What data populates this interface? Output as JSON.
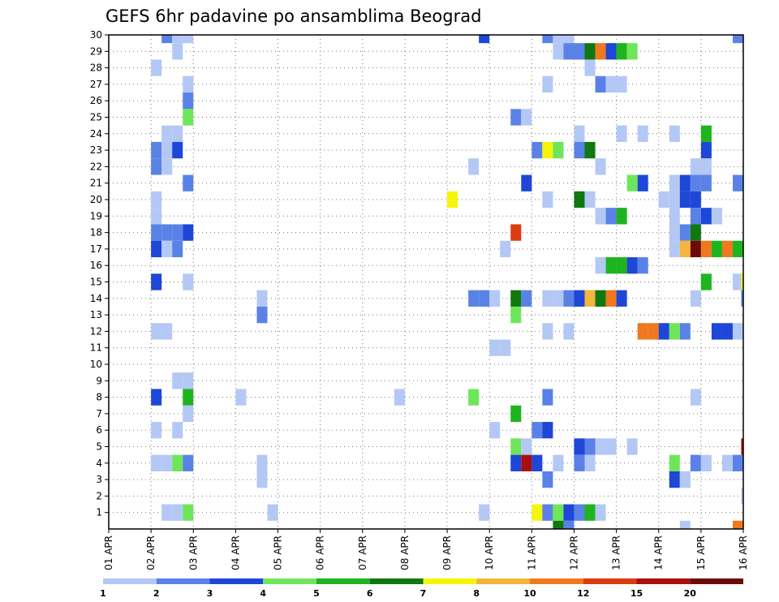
{
  "chart_data": {
    "type": "heatmap",
    "title": "GEFS 6hr padavine po ansamblima Beograd",
    "xlabel": "",
    "ylabel": "",
    "x_tick_labels": [
      "01 APR",
      "02 APR",
      "03 APR",
      "04 APR",
      "05 APR",
      "06 APR",
      "07 APR",
      "08 APR",
      "09 APR",
      "10 APR",
      "11 APR",
      "12 APR",
      "13 APR",
      "14 APR",
      "15 APR",
      "16 APR"
    ],
    "y_tick_labels": [
      "1",
      "2",
      "3",
      "4",
      "5",
      "6",
      "7",
      "8",
      "9",
      "10",
      "11",
      "12",
      "13",
      "14",
      "15",
      "16",
      "17",
      "18",
      "19",
      "20",
      "21",
      "22",
      "23",
      "24",
      "25",
      "26",
      "27",
      "28",
      "29",
      "30"
    ],
    "xlim_days": [
      1,
      16
    ],
    "time_step_days": 0.25,
    "ylim_member": [
      0,
      30
    ],
    "grid": "dotted",
    "legend": {
      "placement": "bottom",
      "thresholds": [
        1,
        2,
        3,
        4,
        5,
        6,
        7,
        8,
        10,
        12,
        15,
        20
      ],
      "colors": [
        "#b4c8f5",
        "#5a82e6",
        "#1e46d7",
        "#6ee65a",
        "#1eb41e",
        "#0f780f",
        "#f5f50a",
        "#f5b43c",
        "#f0781e",
        "#dc3c0f",
        "#aa0f0f",
        "#6e0a0a"
      ]
    },
    "cells_note": "each cell: [member, day (start of 6h interval, 1 = 01 APR 00z), precipitation class index 0-11]",
    "cells": [
      [
        30,
        2.25,
        1
      ],
      [
        30,
        2.5,
        0
      ],
      [
        30,
        2.75,
        0
      ],
      [
        30,
        9.75,
        2
      ],
      [
        30,
        11.25,
        1
      ],
      [
        30,
        11.5,
        0
      ],
      [
        30,
        11.75,
        0
      ],
      [
        30,
        15.75,
        1
      ],
      [
        29,
        2.5,
        0
      ],
      [
        29,
        11.5,
        0
      ],
      [
        29,
        11.75,
        1
      ],
      [
        29,
        12,
        1
      ],
      [
        29,
        12.25,
        5
      ],
      [
        29,
        12.5,
        8
      ],
      [
        29,
        12.75,
        2
      ],
      [
        29,
        13,
        4
      ],
      [
        29,
        13.25,
        3
      ],
      [
        28,
        2,
        0
      ],
      [
        28,
        12.25,
        0
      ],
      [
        27,
        2.75,
        0
      ],
      [
        27,
        11.25,
        0
      ],
      [
        27,
        12.5,
        1
      ],
      [
        27,
        12.75,
        0
      ],
      [
        27,
        13,
        0
      ],
      [
        26,
        2.75,
        1
      ],
      [
        25,
        2.75,
        3
      ],
      [
        25,
        10.5,
        1
      ],
      [
        25,
        10.75,
        0
      ],
      [
        24,
        2.25,
        0
      ],
      [
        24,
        2.5,
        0
      ],
      [
        24,
        12,
        0
      ],
      [
        24,
        13,
        0
      ],
      [
        24,
        13.5,
        0
      ],
      [
        24,
        14.25,
        0
      ],
      [
        24,
        15,
        4
      ],
      [
        23,
        2,
        1
      ],
      [
        23,
        2.25,
        0
      ],
      [
        23,
        2.5,
        2
      ],
      [
        23,
        11,
        1
      ],
      [
        23,
        11.25,
        6
      ],
      [
        23,
        11.5,
        3
      ],
      [
        23,
        12,
        1
      ],
      [
        23,
        12.25,
        5
      ],
      [
        23,
        15,
        2
      ],
      [
        22,
        2,
        1
      ],
      [
        22,
        2.25,
        0
      ],
      [
        22,
        9.5,
        0
      ],
      [
        22,
        12.5,
        0
      ],
      [
        22,
        14.75,
        0
      ],
      [
        22,
        15,
        0
      ],
      [
        21,
        2.75,
        1
      ],
      [
        21,
        10.75,
        2
      ],
      [
        21,
        13.25,
        3
      ],
      [
        21,
        13.5,
        2
      ],
      [
        21,
        14.25,
        0
      ],
      [
        21,
        14.5,
        2
      ],
      [
        21,
        14.75,
        1
      ],
      [
        21,
        15,
        1
      ],
      [
        21,
        15.75,
        1
      ],
      [
        20,
        2,
        0
      ],
      [
        20,
        9,
        6
      ],
      [
        20,
        11.25,
        0
      ],
      [
        20,
        12,
        5
      ],
      [
        20,
        12.25,
        0
      ],
      [
        20,
        14,
        0
      ],
      [
        20,
        14.25,
        0
      ],
      [
        20,
        14.5,
        2
      ],
      [
        20,
        14.75,
        2
      ],
      [
        19,
        2,
        0
      ],
      [
        19,
        12.5,
        0
      ],
      [
        19,
        12.75,
        1
      ],
      [
        19,
        13,
        4
      ],
      [
        19,
        14.25,
        0
      ],
      [
        19,
        14.75,
        1
      ],
      [
        19,
        15,
        2
      ],
      [
        19,
        15.25,
        0
      ],
      [
        18,
        2,
        1
      ],
      [
        18,
        2.25,
        1
      ],
      [
        18,
        2.5,
        1
      ],
      [
        18,
        2.75,
        2
      ],
      [
        18,
        10.5,
        9
      ],
      [
        18,
        14.25,
        0
      ],
      [
        18,
        14.5,
        1
      ],
      [
        18,
        14.75,
        5
      ],
      [
        17,
        2,
        2
      ],
      [
        17,
        2.25,
        0
      ],
      [
        17,
        2.5,
        1
      ],
      [
        17,
        10.25,
        0
      ],
      [
        17,
        14.25,
        0
      ],
      [
        17,
        14.5,
        7
      ],
      [
        17,
        14.75,
        11
      ],
      [
        17,
        15,
        8
      ],
      [
        17,
        15.25,
        4
      ],
      [
        17,
        15.5,
        8
      ],
      [
        17,
        15.75,
        4
      ],
      [
        16,
        12.5,
        0
      ],
      [
        16,
        12.75,
        4
      ],
      [
        16,
        13,
        4
      ],
      [
        16,
        13.25,
        2
      ],
      [
        16,
        13.5,
        1
      ],
      [
        15,
        2,
        2
      ],
      [
        15,
        2.75,
        0
      ],
      [
        15,
        15,
        4
      ],
      [
        15,
        15.75,
        0
      ],
      [
        15,
        15.95,
        6
      ],
      [
        14,
        4.5,
        0
      ],
      [
        14,
        9.5,
        1
      ],
      [
        14,
        9.75,
        1
      ],
      [
        14,
        10,
        0
      ],
      [
        14,
        10.5,
        5
      ],
      [
        14,
        10.75,
        1
      ],
      [
        14,
        11.25,
        0
      ],
      [
        14,
        11.5,
        0
      ],
      [
        14,
        11.75,
        1
      ],
      [
        14,
        12,
        2
      ],
      [
        14,
        12.25,
        7
      ],
      [
        14,
        12.5,
        5
      ],
      [
        14,
        12.75,
        8
      ],
      [
        14,
        13,
        2
      ],
      [
        14,
        14.75,
        0
      ],
      [
        14,
        15.95,
        1
      ],
      [
        13,
        4.5,
        1
      ],
      [
        13,
        10.5,
        3
      ],
      [
        12,
        2,
        0
      ],
      [
        12,
        2.25,
        0
      ],
      [
        12,
        11.25,
        0
      ],
      [
        12,
        11.75,
        0
      ],
      [
        12,
        13.5,
        8
      ],
      [
        12,
        13.75,
        8
      ],
      [
        12,
        14,
        2
      ],
      [
        12,
        14.25,
        3
      ],
      [
        12,
        14.5,
        1
      ],
      [
        12,
        15.25,
        2
      ],
      [
        12,
        15.5,
        2
      ],
      [
        12,
        15.75,
        0
      ],
      [
        11,
        10,
        0
      ],
      [
        11,
        10.25,
        0
      ],
      [
        9,
        2.5,
        0
      ],
      [
        9,
        2.75,
        0
      ],
      [
        8,
        2,
        2
      ],
      [
        8,
        2.75,
        4
      ],
      [
        8,
        4,
        0
      ],
      [
        8,
        7.75,
        0
      ],
      [
        8,
        9.5,
        3
      ],
      [
        8,
        11.25,
        1
      ],
      [
        8,
        14.75,
        0
      ],
      [
        7,
        2.75,
        0
      ],
      [
        7,
        10.5,
        4
      ],
      [
        6,
        2,
        0
      ],
      [
        6,
        2.5,
        0
      ],
      [
        6,
        10,
        0
      ],
      [
        6,
        11,
        1
      ],
      [
        6,
        11.25,
        2
      ],
      [
        5,
        10.5,
        3
      ],
      [
        5,
        10.75,
        0
      ],
      [
        5,
        12,
        2
      ],
      [
        5,
        12.25,
        1
      ],
      [
        5,
        12.5,
        0
      ],
      [
        5,
        12.75,
        0
      ],
      [
        5,
        13.25,
        0
      ],
      [
        5,
        15.95,
        10
      ],
      [
        4,
        2,
        0
      ],
      [
        4,
        2.25,
        0
      ],
      [
        4,
        2.5,
        3
      ],
      [
        4,
        2.75,
        1
      ],
      [
        4,
        4.5,
        0
      ],
      [
        4,
        10.5,
        2
      ],
      [
        4,
        10.75,
        10
      ],
      [
        4,
        11,
        2
      ],
      [
        4,
        11.5,
        0
      ],
      [
        4,
        12,
        1
      ],
      [
        4,
        12.25,
        0
      ],
      [
        4,
        14.25,
        3
      ],
      [
        4,
        14.75,
        1
      ],
      [
        4,
        15,
        0
      ],
      [
        4,
        15.5,
        0
      ],
      [
        4,
        15.75,
        1
      ],
      [
        3,
        4.5,
        0
      ],
      [
        3,
        11.25,
        1
      ],
      [
        3,
        14.25,
        2
      ],
      [
        3,
        14.5,
        0
      ],
      [
        2,
        15.95,
        0
      ],
      [
        1,
        2.25,
        0
      ],
      [
        1,
        2.5,
        0
      ],
      [
        1,
        2.75,
        3
      ],
      [
        1,
        4.75,
        0
      ],
      [
        1,
        9.75,
        0
      ],
      [
        1,
        11,
        6
      ],
      [
        1,
        11.25,
        1
      ],
      [
        1,
        11.5,
        3
      ],
      [
        1,
        11.75,
        2
      ],
      [
        1,
        12,
        1
      ],
      [
        1,
        12.25,
        4
      ],
      [
        1,
        12.5,
        0
      ],
      [
        0,
        11.5,
        5
      ],
      [
        0,
        11.75,
        1
      ],
      [
        0,
        14.5,
        0
      ],
      [
        0,
        15.75,
        8
      ]
    ]
  }
}
